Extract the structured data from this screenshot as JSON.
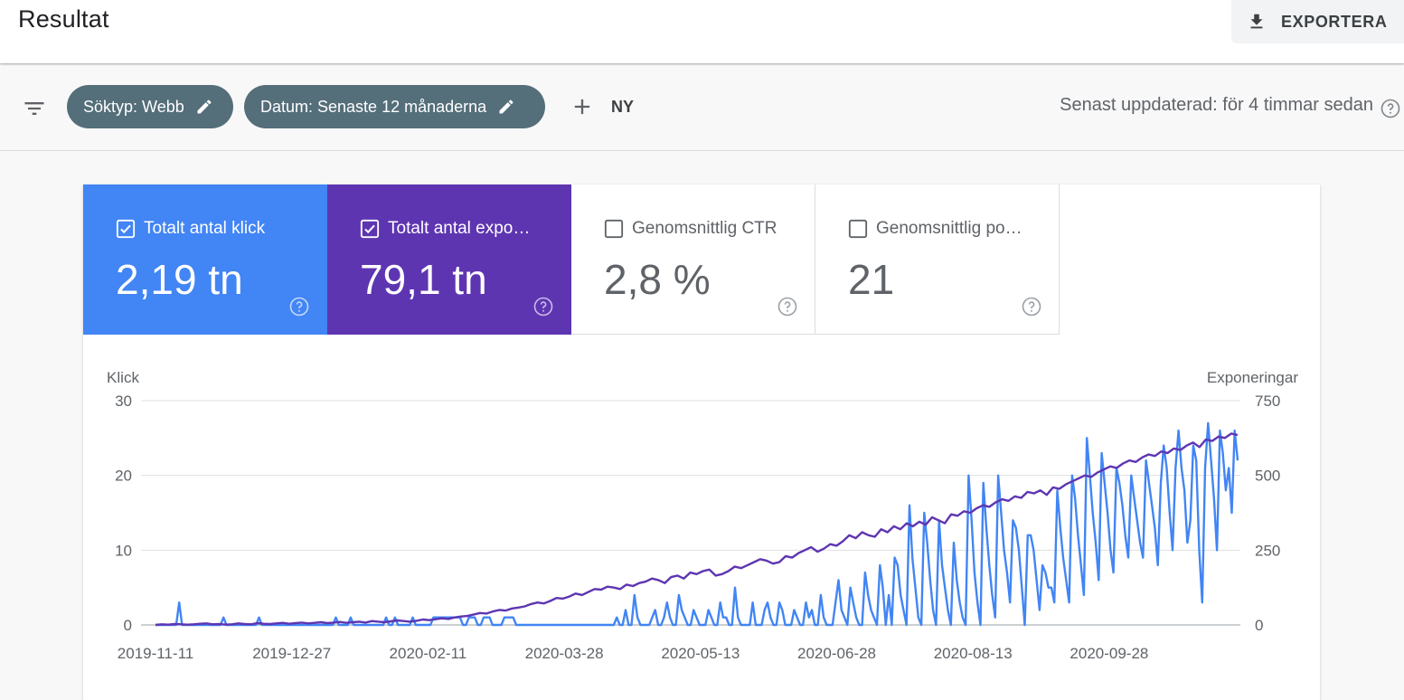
{
  "header": {
    "title": "Resultat",
    "export_label": "EXPORTERA"
  },
  "filters": {
    "chips": [
      "Söktyp: Webb",
      "Datum: Senaste 12 månaderna"
    ],
    "new_label": "NY",
    "updated_text": "Senast uppdaterad: för 4 timmar sedan"
  },
  "metrics": [
    {
      "label": "Totalt antal klick",
      "value": "2,19 tn",
      "checked": true,
      "color": "#4285f4"
    },
    {
      "label": "Totalt antal expo…",
      "value": "79,1 tn",
      "checked": true,
      "color": "#5e35b1"
    },
    {
      "label": "Genomsnittlig CTR",
      "value": "2,8 %",
      "checked": false
    },
    {
      "label": "Genomsnittlig po…",
      "value": "21",
      "checked": false
    }
  ],
  "chart_data": {
    "type": "line",
    "y_left_label": "Klick",
    "y_right_label": "Exponeringar",
    "y_left_ticks": [
      "30",
      "20",
      "10",
      "0"
    ],
    "y_right_ticks": [
      "750",
      "500",
      "250",
      "0"
    ],
    "ylim_left": [
      0,
      30
    ],
    "ylim_right": [
      0,
      750
    ],
    "x_ticks": [
      "2019-11-11",
      "2019-12-27",
      "2020-02-11",
      "2020-03-28",
      "2020-05-13",
      "2020-06-28",
      "2020-08-13",
      "2020-09-28"
    ],
    "grid": true,
    "series": [
      {
        "name": "Klick",
        "axis": "left",
        "color": "#4285f4",
        "values": [
          0,
          0,
          0,
          0,
          0,
          0,
          0,
          0,
          3,
          0,
          0,
          0,
          0,
          0,
          0,
          0,
          0,
          0,
          0,
          0,
          0,
          0,
          0,
          1,
          0,
          0,
          0,
          0,
          0,
          0,
          0,
          0,
          0,
          0,
          0,
          1,
          0,
          0,
          0,
          0,
          0,
          0,
          0,
          0,
          0,
          0,
          0,
          0,
          0,
          0,
          0,
          0,
          0,
          0,
          0,
          0,
          0,
          0,
          0,
          0,
          0,
          1,
          0,
          0,
          0,
          0,
          1,
          0,
          0,
          0,
          0,
          0,
          0,
          0,
          0,
          0,
          0,
          0,
          1,
          0,
          0,
          1,
          0,
          0,
          0,
          0,
          0,
          1,
          0,
          0,
          0,
          0,
          0,
          0,
          1,
          1,
          1,
          1,
          1,
          1,
          1,
          1,
          1,
          1,
          0,
          0,
          1,
          1,
          1,
          0,
          0,
          1,
          1,
          1,
          0,
          0,
          0,
          0,
          1,
          1,
          1,
          1,
          0,
          0,
          0,
          0,
          0,
          0,
          0,
          0,
          0,
          0,
          0,
          0,
          0,
          0,
          0,
          0,
          0,
          0,
          0,
          0,
          0,
          0,
          0,
          0,
          0,
          0,
          0,
          0,
          0,
          0,
          0,
          0,
          0,
          0,
          1,
          0,
          0,
          2,
          0,
          0,
          4,
          1,
          0,
          0,
          0,
          0,
          1,
          2,
          0,
          0,
          1,
          3,
          1,
          0,
          0,
          4,
          2,
          1,
          0,
          0,
          2,
          1,
          0,
          0,
          0,
          2,
          1,
          0,
          0,
          3,
          1,
          1,
          0,
          0,
          5,
          1,
          0,
          0,
          0,
          0,
          3,
          0,
          0,
          0,
          2,
          3,
          1,
          0,
          0,
          3,
          2,
          0,
          0,
          0,
          2,
          1,
          0,
          0,
          3,
          1,
          2,
          0,
          0,
          4,
          1,
          0,
          0,
          0,
          3,
          6,
          2,
          1,
          0,
          5,
          3,
          1,
          0,
          0,
          7,
          4,
          2,
          1,
          0,
          8,
          5,
          0,
          4,
          0,
          9,
          8,
          4,
          2,
          0,
          16,
          9,
          5,
          1,
          0,
          15,
          11,
          6,
          2,
          0,
          14,
          8,
          5,
          2,
          0,
          11,
          6,
          3,
          1,
          0,
          20,
          14,
          7,
          3,
          0,
          19,
          13,
          8,
          4,
          1,
          20,
          15,
          10,
          7,
          3,
          14,
          13,
          10,
          5,
          0,
          12,
          12,
          10,
          6,
          2,
          8,
          7,
          5,
          5,
          3,
          18,
          13,
          9,
          6,
          3,
          20,
          17,
          12,
          8,
          4,
          25,
          20,
          15,
          11,
          6,
          23,
          19,
          15,
          10,
          7,
          21,
          19,
          16,
          12,
          9,
          20,
          17,
          14,
          11,
          9,
          22,
          19,
          16,
          13,
          8,
          19,
          24,
          21,
          15,
          10,
          21,
          26,
          21,
          18,
          11,
          14,
          24,
          22,
          10,
          3,
          21,
          27,
          22,
          17,
          10,
          26,
          23,
          18,
          21,
          15,
          26,
          22
        ],
        "note_values_are_approx": true
      },
      {
        "name": "Exponeringar",
        "axis": "right",
        "color": "#5e35b1",
        "values": [
          0,
          2,
          1,
          3,
          2,
          1,
          2,
          4,
          5,
          2,
          3,
          1,
          2,
          5,
          3,
          2,
          6,
          4,
          3,
          5,
          7,
          4,
          6,
          8,
          5,
          7,
          9,
          6,
          8,
          10,
          7,
          9,
          11,
          8,
          13,
          11,
          9,
          12,
          15,
          13,
          11,
          14,
          18,
          16,
          19,
          22,
          20,
          25,
          28,
          30,
          35,
          40,
          38,
          45,
          50,
          48,
          55,
          58,
          62,
          70,
          75,
          72,
          80,
          90,
          88,
          95,
          105,
          100,
          110,
          120,
          118,
          128,
          125,
          120,
          135,
          130,
          140,
          145,
          155,
          150,
          140,
          160,
          165,
          155,
          175,
          170,
          180,
          185,
          165,
          170,
          180,
          195,
          190,
          200,
          210,
          220,
          215,
          205,
          210,
          230,
          225,
          240,
          250,
          260,
          245,
          255,
          270,
          265,
          280,
          300,
          290,
          310,
          300,
          295,
          320,
          310,
          330,
          320,
          340,
          330,
          345,
          335,
          360,
          350,
          340,
          370,
          365,
          380,
          375,
          390,
          400,
          395,
          410,
          420,
          415,
          430,
          425,
          445,
          440,
          450,
          435,
          460,
          455,
          470,
          480,
          490,
          500,
          495,
          510,
          520,
          530,
          525,
          540,
          550,
          545,
          560,
          570,
          565,
          580,
          575,
          590,
          585,
          600,
          610,
          595,
          620,
          615,
          630,
          625,
          640,
          635
        ],
        "note_values_are_approx": true
      }
    ]
  }
}
